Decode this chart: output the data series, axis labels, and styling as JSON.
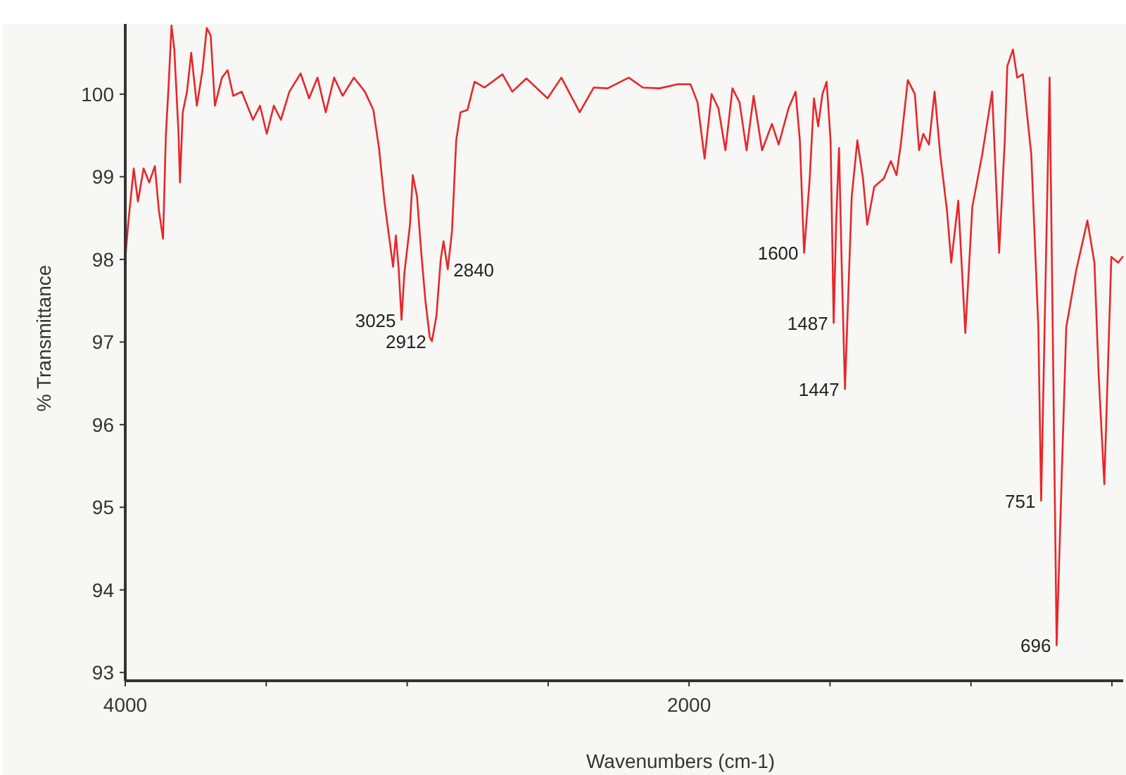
{
  "chart_data": {
    "type": "line",
    "xlabel": "Wavenumbers (cm-1)",
    "ylabel": "% Transmittance",
    "xlim": [
      4000,
      460
    ],
    "ylim": [
      92.9,
      100.85
    ],
    "xticks": [
      4000,
      {
        "value": 3500,
        "label": null
      },
      {
        "value": 3000,
        "label": null
      },
      {
        "value": 2500,
        "label": null
      },
      2000,
      {
        "value": 1500,
        "label": null
      },
      {
        "value": 1000,
        "label": null
      },
      {
        "value": 500,
        "label": null
      }
    ],
    "yticks": [
      93,
      94,
      95,
      96,
      97,
      98,
      99,
      100
    ],
    "x": [
      4000,
      3990,
      3970,
      3955,
      3935,
      3915,
      3895,
      3881,
      3866,
      3856,
      3846,
      3836,
      3826,
      3811,
      3806,
      3796,
      3781,
      3766,
      3746,
      3726,
      3711,
      3697,
      3682,
      3657,
      3637,
      3617,
      3587,
      3547,
      3522,
      3498,
      3473,
      3448,
      3418,
      3378,
      3348,
      3318,
      3289,
      3259,
      3229,
      3189,
      3150,
      3120,
      3100,
      3080,
      3060,
      3050,
      3040,
      3030,
      3020,
      3010,
      2990,
      2980,
      2965,
      2950,
      2935,
      2920,
      2912,
      2896,
      2881,
      2871,
      2856,
      2841,
      2826,
      2811,
      2786,
      2761,
      2726,
      2662,
      2627,
      2577,
      2502,
      2453,
      2388,
      2338,
      2289,
      2214,
      2164,
      2105,
      2040,
      1995,
      1970,
      1945,
      1920,
      1896,
      1871,
      1846,
      1821,
      1796,
      1771,
      1741,
      1706,
      1682,
      1647,
      1622,
      1607,
      1592,
      1572,
      1557,
      1542,
      1527,
      1512,
      1498,
      1487,
      1478,
      1468,
      1458,
      1447,
      1423,
      1403,
      1383,
      1368,
      1343,
      1309,
      1284,
      1264,
      1249,
      1224,
      1199,
      1184,
      1169,
      1149,
      1129,
      1109,
      1085,
      1070,
      1045,
      1020,
      995,
      960,
      925,
      900,
      880,
      871,
      851,
      836,
      816,
      786,
      761,
      751,
      721,
      696,
      662,
      627,
      587,
      562,
      547,
      527,
      502,
      478,
      462
    ],
    "series": [
      {
        "color": "#e8262a",
        "values": [
          98.0,
          98.42,
          99.1,
          98.7,
          99.1,
          98.93,
          99.13,
          98.6,
          98.25,
          99.5,
          100.12,
          100.83,
          100.54,
          99.52,
          98.93,
          99.78,
          100.03,
          100.5,
          99.86,
          100.29,
          100.8,
          100.71,
          99.86,
          100.2,
          100.29,
          99.98,
          100.03,
          99.69,
          99.86,
          99.52,
          99.86,
          99.69,
          100.03,
          100.25,
          99.95,
          100.2,
          99.78,
          100.2,
          99.98,
          100.2,
          100.03,
          99.81,
          99.35,
          98.68,
          98.17,
          97.91,
          98.29,
          97.88,
          97.27,
          97.83,
          98.42,
          99.02,
          98.76,
          98.08,
          97.49,
          97.06,
          97.01,
          97.32,
          98.0,
          98.22,
          97.88,
          98.34,
          99.44,
          99.78,
          99.81,
          100.15,
          100.08,
          100.24,
          100.03,
          100.19,
          99.95,
          100.2,
          99.78,
          100.08,
          100.07,
          100.2,
          100.08,
          100.07,
          100.12,
          100.12,
          99.9,
          99.22,
          100.0,
          99.83,
          99.32,
          100.07,
          99.9,
          99.32,
          99.98,
          99.32,
          99.64,
          99.39,
          99.83,
          100.03,
          99.44,
          98.08,
          98.98,
          99.95,
          99.61,
          100.0,
          100.15,
          99.44,
          97.23,
          98.47,
          99.35,
          97.86,
          96.43,
          98.76,
          99.44,
          98.98,
          98.42,
          98.88,
          98.98,
          99.19,
          99.02,
          99.39,
          100.17,
          100.0,
          99.32,
          99.52,
          99.39,
          100.03,
          99.27,
          98.59,
          97.96,
          98.71,
          97.11,
          98.64,
          99.27,
          100.03,
          98.08,
          99.44,
          100.34,
          100.54,
          100.2,
          100.24,
          99.27,
          97.18,
          95.08,
          100.2,
          93.33,
          97.18,
          97.86,
          98.47,
          97.96,
          96.6,
          95.28,
          98.03,
          97.96,
          98.03
        ]
      }
    ],
    "annotations": [
      {
        "text": "3025",
        "x": 3020,
        "y": 97.27
      },
      {
        "text": "2912",
        "x": 2912,
        "y": 97.01
      },
      {
        "text": "2840",
        "x": 2856,
        "y": 97.88
      },
      {
        "text": "1600",
        "x": 1592,
        "y": 98.08
      },
      {
        "text": "1487",
        "x": 1487,
        "y": 97.23
      },
      {
        "text": "1447",
        "x": 1447,
        "y": 96.43
      },
      {
        "text": "751",
        "x": 751,
        "y": 95.08
      },
      {
        "text": "696",
        "x": 696,
        "y": 93.33
      }
    ]
  }
}
